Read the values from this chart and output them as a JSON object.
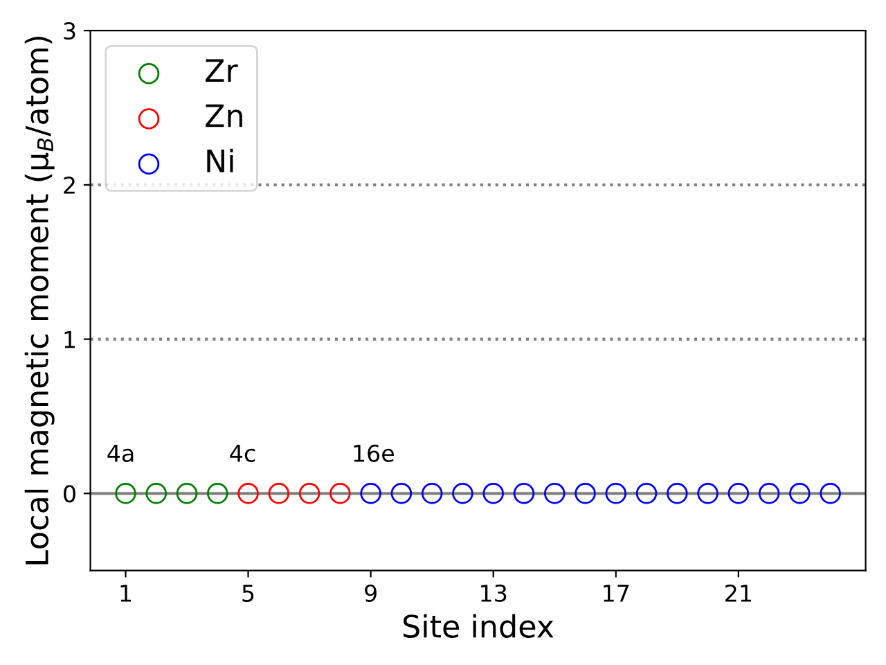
{
  "chart_data": {
    "type": "scatter",
    "xlabel": "Site index",
    "ylabel": "Local magnetic moment (μ$_{B}$/atom)",
    "series": [
      {
        "name": "Zr",
        "color": "#008000",
        "x": [
          1,
          2,
          3,
          4
        ],
        "values": [
          0,
          0,
          0,
          0
        ]
      },
      {
        "name": "Zn",
        "color": "#ff0000",
        "x": [
          5,
          6,
          7,
          8
        ],
        "values": [
          0,
          0,
          0,
          0
        ]
      },
      {
        "name": "Ni",
        "color": "#0000ff",
        "x": [
          9,
          10,
          11,
          12,
          13,
          14,
          15,
          16,
          17,
          18,
          19,
          20,
          21,
          22,
          23,
          24
        ],
        "values": [
          0,
          0,
          0,
          0,
          0,
          0,
          0,
          0,
          0,
          0,
          0,
          0,
          0,
          0,
          0,
          0
        ]
      }
    ],
    "marker": "circle",
    "xlim": [
      -0.15,
      25.15
    ],
    "xticks": [
      1,
      5,
      9,
      13,
      17,
      21
    ],
    "ylim": [
      -0.5,
      3
    ],
    "yticks": [
      0,
      1,
      2,
      3
    ],
    "ref_lines": [
      {
        "axis": "y",
        "value": 0,
        "color": "#808080",
        "line_style": "solid"
      },
      {
        "axis": "y",
        "value": 1,
        "color": "#808080",
        "line_style": "dotted"
      },
      {
        "axis": "y",
        "value": 2,
        "color": "#808080",
        "line_style": "dotted"
      }
    ],
    "annotations": [
      "4a",
      "4c",
      "16e"
    ],
    "grid": false,
    "legend": "top left"
  }
}
